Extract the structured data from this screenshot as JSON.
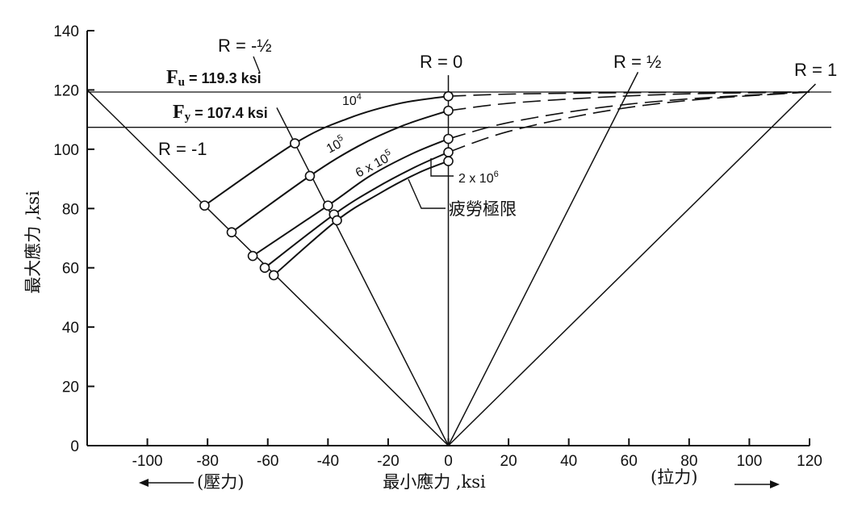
{
  "chart_data": {
    "type": "line",
    "xlabel": "最小應力 ,ksi",
    "ylabel": "最大應力 ,ksi",
    "xlim": [
      -120,
      120
    ],
    "ylim": [
      0,
      140
    ],
    "x_ticks": [
      -100,
      -80,
      -60,
      -40,
      -20,
      0,
      20,
      40,
      60,
      80,
      100,
      120
    ],
    "x_tick_labels": [
      "-100",
      "-80",
      "-60",
      "-40",
      "-20",
      "0",
      "20",
      "40",
      "60",
      "80",
      "100",
      "120"
    ],
    "y_ticks": [
      0,
      20,
      40,
      60,
      80,
      100,
      120,
      140
    ],
    "y_tick_labels": [
      "0",
      "20",
      "40",
      "60",
      "80",
      "100",
      "120",
      "140"
    ],
    "grid": false,
    "reference_lines": [
      {
        "label": "Fu = 119.3 ksi",
        "symbol": "F",
        "subscript": "u",
        "text": " = 119.3 ksi",
        "y": 119.3
      },
      {
        "label": "Fy = 107.4 ksi",
        "symbol": "F",
        "subscript": "y",
        "text": " = 107.4 ksi",
        "y": 107.4
      }
    ],
    "ratio_lines": [
      {
        "label": "R = -1",
        "ratio": -1,
        "from": [
          0,
          0
        ],
        "to": [
          -120,
          120
        ]
      },
      {
        "label": "R = -½",
        "ratio": -0.5,
        "from": [
          0,
          0
        ],
        "to": [
          -57,
          114
        ]
      },
      {
        "label": "R = 0",
        "ratio": 0,
        "from": [
          0,
          0
        ],
        "to": [
          0,
          125
        ]
      },
      {
        "label": "R = ½",
        "ratio": 0.5,
        "from": [
          0,
          0
        ],
        "to": [
          63,
          126
        ]
      },
      {
        "label": "R = 1",
        "ratio": 1,
        "from": [
          0,
          0
        ],
        "to": [
          122,
          122
        ]
      }
    ],
    "series": [
      {
        "name": "10⁴",
        "base": "10",
        "exp": "4",
        "points": [
          [
            -81,
            81
          ],
          [
            -51,
            102
          ],
          [
            -33,
            110.5
          ],
          [
            -16,
            115.5
          ],
          [
            0,
            117.9
          ]
        ],
        "dashed_points": [
          [
            0,
            117.9
          ],
          [
            20,
            118.6
          ],
          [
            50,
            119
          ],
          [
            80,
            119.2
          ],
          [
            120,
            119.3
          ]
        ]
      },
      {
        "name": "10⁵",
        "base": "10",
        "exp": "5",
        "points": [
          [
            -72,
            72
          ],
          [
            -46,
            91
          ],
          [
            -30,
            101
          ],
          [
            -15,
            108
          ],
          [
            0,
            113
          ]
        ],
        "dashed_points": [
          [
            0,
            113
          ],
          [
            20,
            115.5
          ],
          [
            50,
            117.5
          ],
          [
            80,
            118.7
          ],
          [
            120,
            119.3
          ]
        ]
      },
      {
        "name": "6 x 10⁵",
        "base": "6 x 10",
        "exp": "5",
        "points": [
          [
            -65,
            64
          ],
          [
            -40,
            81
          ],
          [
            -26,
            91
          ],
          [
            -12,
            98.5
          ],
          [
            0,
            103.5
          ]
        ],
        "dashed_points": [
          [
            0,
            103.5
          ],
          [
            20,
            109
          ],
          [
            50,
            114
          ],
          [
            80,
            117
          ],
          [
            120,
            119.3
          ]
        ]
      },
      {
        "name": "2 x 10⁶",
        "base": "2 x 10",
        "exp": "6",
        "points": [
          [
            -61,
            60
          ],
          [
            -38,
            78
          ],
          [
            -24,
            87
          ],
          [
            -11,
            94
          ],
          [
            0,
            99
          ]
        ],
        "dashed_points": [
          [
            0,
            99
          ],
          [
            20,
            106
          ],
          [
            50,
            112.5
          ],
          [
            80,
            116.5
          ],
          [
            120,
            119.3
          ]
        ]
      },
      {
        "name": "疲勞極限",
        "points": [
          [
            -58,
            57.5
          ],
          [
            -37,
            76
          ],
          [
            -23,
            85
          ],
          [
            -10,
            92
          ],
          [
            0,
            96
          ]
        ],
        "dashed_points": []
      }
    ],
    "markers": [
      [
        -81,
        81
      ],
      [
        -72,
        72
      ],
      [
        -65,
        64
      ],
      [
        -61,
        60
      ],
      [
        -58,
        57.5
      ],
      [
        -51,
        102
      ],
      [
        -46,
        91
      ],
      [
        -40,
        81
      ],
      [
        -38,
        78
      ],
      [
        -37,
        76
      ],
      [
        0,
        117.9
      ],
      [
        0,
        113
      ],
      [
        0,
        103.5
      ],
      [
        0,
        99
      ],
      [
        0,
        96
      ]
    ]
  },
  "annotations": {
    "r_minus_half": "R = -½",
    "r_zero": "R = 0",
    "r_half": "R = ½",
    "r_one": "R = 1",
    "r_minus_one": "R = -1",
    "compression": "(壓力)",
    "tension": "(拉力)",
    "label_2e6_base": "2 x 10",
    "label_2e6_exp": "6",
    "label_fatigue_limit": "疲勞極限"
  }
}
